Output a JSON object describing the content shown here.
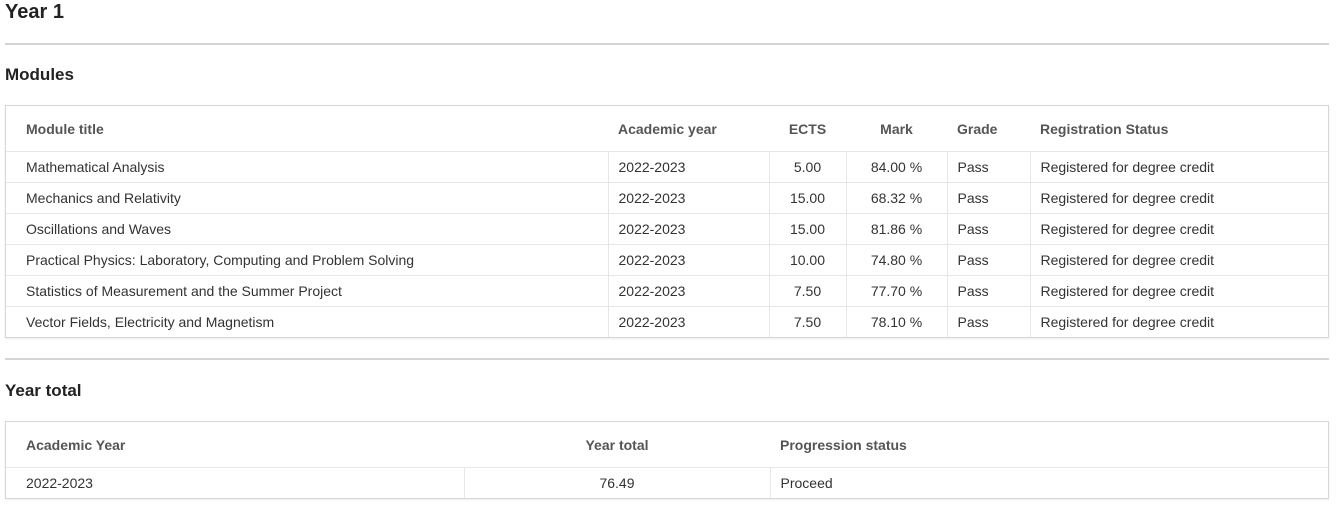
{
  "year_heading": "Year 1",
  "modules": {
    "heading": "Modules",
    "columns": {
      "title": "Module title",
      "academic_year": "Academic year",
      "ects": "ECTS",
      "mark": "Mark",
      "grade": "Grade",
      "status": "Registration Status"
    },
    "rows": [
      {
        "title": "Mathematical Analysis",
        "academic_year": "2022-2023",
        "ects": "5.00",
        "mark": "84.00 %",
        "grade": "Pass",
        "status": "Registered for degree credit"
      },
      {
        "title": "Mechanics and Relativity",
        "academic_year": "2022-2023",
        "ects": "15.00",
        "mark": "68.32 %",
        "grade": "Pass",
        "status": "Registered for degree credit"
      },
      {
        "title": "Oscillations and Waves",
        "academic_year": "2022-2023",
        "ects": "15.00",
        "mark": "81.86 %",
        "grade": "Pass",
        "status": "Registered for degree credit"
      },
      {
        "title": "Practical Physics: Laboratory, Computing and Problem Solving",
        "academic_year": "2022-2023",
        "ects": "10.00",
        "mark": "74.80 %",
        "grade": "Pass",
        "status": "Registered for degree credit"
      },
      {
        "title": "Statistics of Measurement and the Summer Project",
        "academic_year": "2022-2023",
        "ects": "7.50",
        "mark": "77.70 %",
        "grade": "Pass",
        "status": "Registered for degree credit"
      },
      {
        "title": "Vector Fields, Electricity and Magnetism",
        "academic_year": "2022-2023",
        "ects": "7.50",
        "mark": "78.10 %",
        "grade": "Pass",
        "status": "Registered for degree credit"
      }
    ]
  },
  "year_total": {
    "heading": "Year total",
    "columns": {
      "academic_year": "Academic Year",
      "year_total": "Year total",
      "progression": "Progression status"
    },
    "rows": [
      {
        "academic_year": "2022-2023",
        "year_total": "76.49",
        "progression": "Proceed"
      }
    ]
  }
}
